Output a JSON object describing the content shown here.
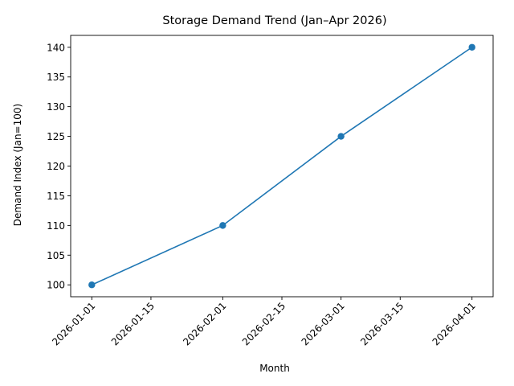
{
  "chart_data": {
    "type": "line",
    "title": "Storage Demand Trend (Jan–Apr 2026)",
    "xlabel": "Month",
    "ylabel": "Demand Index (Jan=100)",
    "x": [
      "2026-01-01",
      "2026-02-01",
      "2026-03-01",
      "2026-04-01"
    ],
    "series": [
      {
        "values": [
          100,
          110,
          125,
          140
        ]
      }
    ],
    "x_ticks": [
      "2026-01-01",
      "2026-01-15",
      "2026-02-01",
      "2026-02-15",
      "2026-03-01",
      "2026-03-15",
      "2026-04-01"
    ],
    "y_ticks": [
      100,
      105,
      110,
      115,
      120,
      125,
      130,
      135,
      140
    ],
    "xlim": [
      "2025-12-27",
      "2026-04-06"
    ],
    "ylim": [
      98,
      142
    ],
    "grid": false,
    "line_color": "#1f77b4",
    "marker": "circle"
  }
}
